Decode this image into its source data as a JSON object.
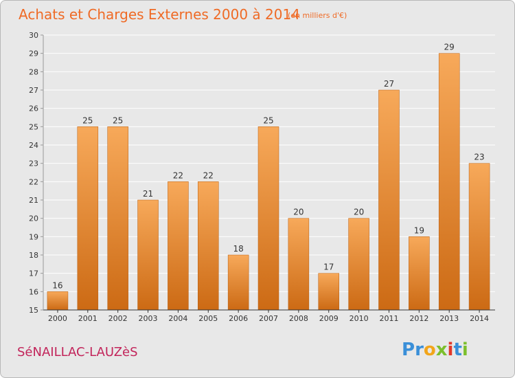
{
  "page": {
    "commune": "SéNAILLAC-LAUZèS",
    "logo": {
      "letters": [
        "P",
        "r",
        "o",
        "x",
        "i",
        "t",
        "i"
      ],
      "colors": [
        "#3a8fd8",
        "#3a8fd8",
        "#f2a51a",
        "#7cbf2d",
        "#e2382a",
        "#3a8fd8",
        "#7cbf2d"
      ]
    }
  },
  "chart_data": {
    "type": "bar",
    "title": "Achats et Charges Externes 2000 à 2014",
    "subtitle": "(en milliers d'€)",
    "categories": [
      "2000",
      "2001",
      "2002",
      "2003",
      "2004",
      "2005",
      "2006",
      "2007",
      "2008",
      "2009",
      "2010",
      "2011",
      "2012",
      "2013",
      "2014"
    ],
    "values": [
      16,
      25,
      25,
      21,
      22,
      22,
      18,
      25,
      20,
      17,
      20,
      27,
      19,
      29,
      23
    ],
    "value_labels": [
      "16",
      "25",
      "25",
      "21",
      "22",
      "22",
      "18",
      "25",
      "20",
      "17",
      "20",
      "27",
      "19",
      "29",
      "23"
    ],
    "ylim": [
      15,
      30
    ],
    "yticks": [
      "15",
      "16",
      "17",
      "18",
      "19",
      "20",
      "21",
      "22",
      "23",
      "24",
      "25",
      "26",
      "27",
      "28",
      "29",
      "30"
    ],
    "grid": true,
    "colors": {
      "bar_top": "#f7a95a",
      "bar_bottom": "#cc6a14",
      "bar_edge": "#b85d0f",
      "grid": "#ffffff",
      "title": "#ef6a25"
    }
  }
}
